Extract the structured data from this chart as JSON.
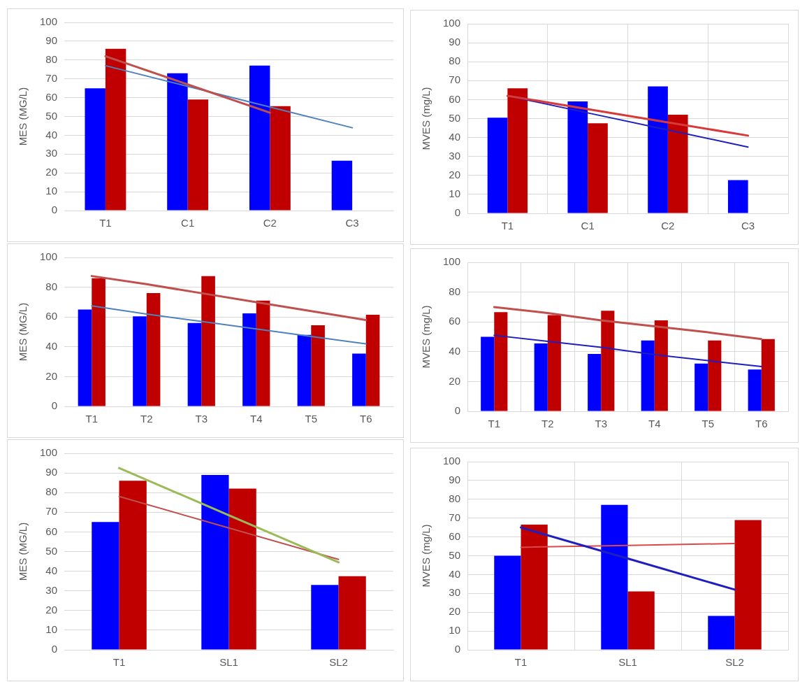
{
  "chart_data": [
    {
      "type": "bar",
      "ylabel": "MES (MG/L)",
      "categories": [
        "T1",
        "C1",
        "C2",
        "C3"
      ],
      "ylim": [
        0,
        100
      ],
      "yticks": [
        0,
        10,
        20,
        30,
        40,
        50,
        60,
        70,
        80,
        90,
        100
      ],
      "grid": "y",
      "legend": false,
      "marker": "none",
      "line_style": "solid",
      "series": [
        {
          "color": "#0000ff",
          "values": [
            65,
            73,
            77,
            26.5
          ]
        },
        {
          "color": "#c00000",
          "values": [
            86,
            59,
            55.5,
            null
          ]
        },
        {
          "type": "line",
          "color": "#c0504d",
          "values": [
            82,
            67,
            52,
            null
          ]
        },
        {
          "type": "line",
          "color": "#4f81bd",
          "values": [
            77,
            66,
            55,
            44
          ]
        }
      ]
    },
    {
      "type": "bar",
      "ylabel": "MVES (mg/L)",
      "categories": [
        "T1",
        "C1",
        "C2",
        "C3"
      ],
      "ylim": [
        0,
        100
      ],
      "yticks": [
        0,
        10,
        20,
        30,
        40,
        50,
        60,
        70,
        80,
        90,
        100
      ],
      "grid": true,
      "legend": false,
      "marker": "none",
      "line_style": "solid",
      "series": [
        {
          "color": "#0000ff",
          "values": [
            50.5,
            59,
            67,
            17.5
          ]
        },
        {
          "color": "#c00000",
          "values": [
            66,
            47.5,
            52,
            null
          ]
        },
        {
          "type": "line",
          "color": "#d83a3a",
          "values": [
            62,
            55,
            48,
            41
          ]
        },
        {
          "type": "line",
          "color": "#1f1fc0",
          "values": [
            62,
            53,
            44,
            35
          ]
        }
      ]
    },
    {
      "type": "bar",
      "ylabel": "MES (MG/L)",
      "categories": [
        "T1",
        "T2",
        "T3",
        "T4",
        "T5",
        "T6"
      ],
      "ylim": [
        0,
        100
      ],
      "yticks": [
        0,
        20,
        40,
        60,
        80,
        100
      ],
      "grid": "y",
      "legend": false,
      "marker": "none",
      "line_style": "solid",
      "series": [
        {
          "color": "#0000ff",
          "values": [
            65,
            60.5,
            56,
            62.5,
            48,
            35.5
          ]
        },
        {
          "color": "#c00000",
          "values": [
            86,
            76,
            87.5,
            71,
            54.5,
            61.5
          ]
        },
        {
          "type": "line",
          "color": "#c0504d",
          "values": [
            87.5,
            82,
            76,
            70,
            64,
            58
          ]
        },
        {
          "type": "line",
          "color": "#4f81bd",
          "values": [
            67.5,
            62,
            57,
            52,
            47,
            42
          ]
        }
      ]
    },
    {
      "type": "bar",
      "ylabel": "MVES (mg/L)",
      "categories": [
        "T1",
        "T2",
        "T3",
        "T4",
        "T5",
        "T6"
      ],
      "ylim": [
        0,
        100
      ],
      "yticks": [
        0,
        20,
        40,
        60,
        80,
        100
      ],
      "grid": true,
      "legend": false,
      "marker": "none",
      "line_style": "solid",
      "series": [
        {
          "color": "#0000ff",
          "values": [
            50,
            45.5,
            38.5,
            47.5,
            32,
            28
          ]
        },
        {
          "color": "#c00000",
          "values": [
            66.5,
            64.5,
            67.5,
            61,
            47.5,
            48.5
          ]
        },
        {
          "type": "line",
          "color": "#c0504d",
          "values": [
            70,
            66,
            61,
            57,
            53,
            48.5
          ]
        },
        {
          "type": "line",
          "color": "#1f1fc0",
          "values": [
            51,
            47,
            43,
            38,
            34,
            30
          ]
        }
      ]
    },
    {
      "type": "bar",
      "ylabel": "MES (MG/L)",
      "categories": [
        "T1",
        "SL1",
        "SL2"
      ],
      "ylim": [
        0,
        100
      ],
      "yticks": [
        0,
        10,
        20,
        30,
        40,
        50,
        60,
        70,
        80,
        90,
        100
      ],
      "grid": "y",
      "legend": false,
      "marker": "none",
      "line_style": "solid",
      "series": [
        {
          "color": "#0000ff",
          "values": [
            65,
            89,
            33
          ]
        },
        {
          "color": "#c00000",
          "values": [
            86,
            82,
            37.5
          ]
        },
        {
          "type": "line",
          "color": "#9bbb59",
          "values": [
            92.5,
            68.5,
            44.5
          ]
        },
        {
          "type": "line",
          "color": "#c0504d",
          "values": [
            78,
            62,
            46
          ]
        }
      ]
    },
    {
      "type": "bar",
      "ylabel": "MVES (mg/L)",
      "categories": [
        "T1",
        "SL1",
        "SL2"
      ],
      "ylim": [
        0,
        100
      ],
      "yticks": [
        0,
        10,
        20,
        30,
        40,
        50,
        60,
        70,
        80,
        90,
        100
      ],
      "grid": true,
      "legend": false,
      "marker": "none",
      "line_style": "solid",
      "series": [
        {
          "color": "#0000ff",
          "values": [
            50,
            77,
            18
          ]
        },
        {
          "color": "#c00000",
          "values": [
            66.5,
            31,
            69
          ]
        },
        {
          "type": "line",
          "color": "#1f1fc0",
          "values": [
            65,
            48.5,
            32
          ]
        },
        {
          "type": "line",
          "color": "#d84a4a",
          "values": [
            54.5,
            55.5,
            56.5
          ]
        }
      ]
    }
  ]
}
